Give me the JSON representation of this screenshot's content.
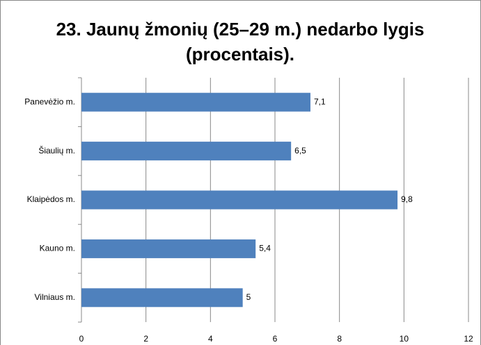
{
  "chart_data": {
    "type": "bar",
    "orientation": "horizontal",
    "title": "23. Jaunų žmonių (25–29 m.) nedarbo lygis (procentais).",
    "categories": [
      "Panevėžio m.",
      "Šiaulių m.",
      "Klaipėdos m.",
      "Kauno m.",
      "Vilniaus m."
    ],
    "values": [
      7.1,
      6.5,
      9.8,
      5.4,
      5
    ],
    "value_labels": [
      "7,1",
      "6,5",
      "9,8",
      "5,4",
      "5"
    ],
    "color": "#4f81bd",
    "xlim": [
      0,
      12
    ],
    "xticks": [
      0,
      2,
      4,
      6,
      8,
      10,
      12
    ],
    "grid": true
  }
}
